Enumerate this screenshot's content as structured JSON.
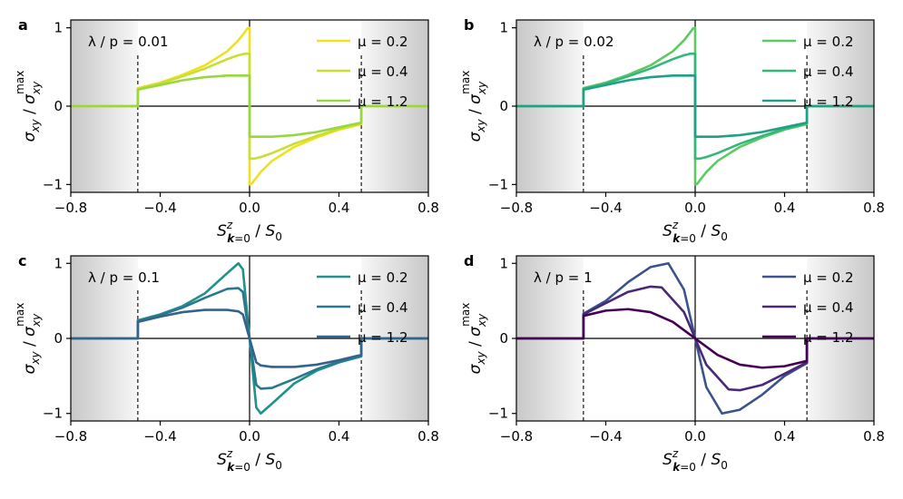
{
  "figure": {
    "xlabel": "S^z_{k=0} / S_0",
    "ylabel": "σ_xy / σ_xy^max"
  },
  "chart_data": [
    {
      "type": "line",
      "panel": "a",
      "note": "λ / p = 0.01",
      "xlim": [
        -0.8,
        0.8
      ],
      "ylim": [
        -1.1,
        1.1
      ],
      "xticks": [
        "−0.8",
        "−0.4",
        "0.0",
        "0.4",
        "0.8"
      ],
      "yticks": [
        "−1",
        "0",
        "1"
      ],
      "shaded_regions": [
        [
          -0.8,
          -0.5
        ],
        [
          0.5,
          0.8
        ]
      ],
      "dashed_lines": [
        -0.5,
        0.5
      ],
      "legend_position": "upper right",
      "series": [
        {
          "name": "μ = 0.2",
          "color": "#f0e11e",
          "x": [
            -0.8,
            -0.5,
            -0.5,
            -0.4,
            -0.3,
            -0.2,
            -0.1,
            -0.05,
            -0.02,
            -0.01,
            0.0,
            0.0,
            0.01,
            0.02,
            0.05,
            0.1,
            0.2,
            0.3,
            0.4,
            0.5,
            0.5,
            0.8
          ],
          "y": [
            0,
            0,
            0.23,
            0.3,
            0.4,
            0.52,
            0.7,
            0.84,
            0.95,
            0.99,
            1.0,
            -1.0,
            -0.99,
            -0.95,
            -0.84,
            -0.7,
            -0.52,
            -0.4,
            -0.3,
            -0.23,
            0,
            0
          ]
        },
        {
          "name": "μ = 0.4",
          "color": "#c8df2f",
          "x": [
            -0.8,
            -0.5,
            -0.5,
            -0.4,
            -0.3,
            -0.2,
            -0.1,
            -0.05,
            -0.02,
            0.0,
            0.0,
            0.02,
            0.05,
            0.1,
            0.2,
            0.3,
            0.4,
            0.5,
            0.5,
            0.8
          ],
          "y": [
            0,
            0,
            0.22,
            0.29,
            0.38,
            0.48,
            0.6,
            0.65,
            0.67,
            0.67,
            -0.67,
            -0.67,
            -0.65,
            -0.6,
            -0.48,
            -0.38,
            -0.29,
            -0.22,
            0,
            0
          ]
        },
        {
          "name": "μ = 1.2",
          "color": "#98d83e",
          "x": [
            -0.8,
            -0.5,
            -0.5,
            -0.4,
            -0.3,
            -0.2,
            -0.1,
            -0.05,
            -0.02,
            0.0,
            0.0,
            0.02,
            0.05,
            0.1,
            0.2,
            0.3,
            0.4,
            0.5,
            0.5,
            0.8
          ],
          "y": [
            0,
            0,
            0.21,
            0.27,
            0.33,
            0.37,
            0.39,
            0.39,
            0.39,
            0.39,
            -0.39,
            -0.39,
            -0.39,
            -0.39,
            -0.37,
            -0.33,
            -0.27,
            -0.21,
            0,
            0
          ]
        }
      ]
    },
    {
      "type": "line",
      "panel": "b",
      "note": "λ / p = 0.02",
      "xlim": [
        -0.8,
        0.8
      ],
      "ylim": [
        -1.1,
        1.1
      ],
      "xticks": [
        "−0.8",
        "−0.4",
        "0.0",
        "0.4",
        "0.8"
      ],
      "yticks": [
        "−1",
        "0",
        "1"
      ],
      "shaded_regions": [
        [
          -0.8,
          -0.5
        ],
        [
          0.5,
          0.8
        ]
      ],
      "dashed_lines": [
        -0.5,
        0.5
      ],
      "legend_position": "upper right",
      "series": [
        {
          "name": "μ = 0.2",
          "color": "#5ec962",
          "x": [
            -0.8,
            -0.5,
            -0.5,
            -0.4,
            -0.3,
            -0.2,
            -0.1,
            -0.05,
            -0.02,
            -0.01,
            0.0,
            0.0,
            0.01,
            0.02,
            0.05,
            0.1,
            0.2,
            0.3,
            0.4,
            0.5,
            0.5,
            0.8
          ],
          "y": [
            0,
            0,
            0.23,
            0.3,
            0.4,
            0.52,
            0.7,
            0.84,
            0.95,
            0.99,
            1.0,
            -1.0,
            -0.99,
            -0.95,
            -0.84,
            -0.7,
            -0.52,
            -0.4,
            -0.3,
            -0.23,
            0,
            0
          ]
        },
        {
          "name": "μ = 0.4",
          "color": "#35b779",
          "x": [
            -0.8,
            -0.5,
            -0.5,
            -0.4,
            -0.3,
            -0.2,
            -0.1,
            -0.05,
            -0.02,
            0.0,
            0.0,
            0.02,
            0.05,
            0.1,
            0.2,
            0.3,
            0.4,
            0.5,
            0.5,
            0.8
          ],
          "y": [
            0,
            0,
            0.22,
            0.29,
            0.38,
            0.48,
            0.6,
            0.65,
            0.67,
            0.67,
            -0.67,
            -0.67,
            -0.65,
            -0.6,
            -0.48,
            -0.38,
            -0.29,
            -0.22,
            0,
            0
          ]
        },
        {
          "name": "μ = 1.2",
          "color": "#1fa187",
          "x": [
            -0.8,
            -0.5,
            -0.5,
            -0.4,
            -0.3,
            -0.2,
            -0.1,
            -0.05,
            -0.02,
            0.0,
            0.0,
            0.02,
            0.05,
            0.1,
            0.2,
            0.3,
            0.4,
            0.5,
            0.5,
            0.8
          ],
          "y": [
            0,
            0,
            0.21,
            0.27,
            0.33,
            0.37,
            0.39,
            0.39,
            0.39,
            0.39,
            -0.39,
            -0.39,
            -0.39,
            -0.39,
            -0.37,
            -0.33,
            -0.27,
            -0.21,
            0,
            0
          ]
        }
      ]
    },
    {
      "type": "line",
      "panel": "c",
      "note": "λ / p = 0.1",
      "xlim": [
        -0.8,
        0.8
      ],
      "ylim": [
        -1.1,
        1.1
      ],
      "xticks": [
        "−0.8",
        "−0.4",
        "0.0",
        "0.4",
        "0.8"
      ],
      "yticks": [
        "−1",
        "0",
        "1"
      ],
      "shaded_regions": [
        [
          -0.8,
          -0.5
        ],
        [
          0.5,
          0.8
        ]
      ],
      "dashed_lines": [
        -0.5,
        0.5
      ],
      "legend_position": "upper right",
      "series": [
        {
          "name": "μ = 0.2",
          "color": "#21918c",
          "x": [
            -0.8,
            -0.5,
            -0.5,
            -0.4,
            -0.3,
            -0.2,
            -0.1,
            -0.05,
            -0.03,
            0.0,
            0.03,
            0.05,
            0.1,
            0.2,
            0.3,
            0.4,
            0.5,
            0.5,
            0.8
          ],
          "y": [
            0,
            0,
            0.24,
            0.32,
            0.43,
            0.6,
            0.87,
            1.0,
            0.92,
            0.0,
            -0.92,
            -1.0,
            -0.87,
            -0.6,
            -0.43,
            -0.32,
            -0.24,
            0,
            0
          ]
        },
        {
          "name": "μ = 0.4",
          "color": "#2a788e",
          "x": [
            -0.8,
            -0.5,
            -0.5,
            -0.4,
            -0.3,
            -0.2,
            -0.1,
            -0.05,
            -0.03,
            0.0,
            0.03,
            0.05,
            0.1,
            0.2,
            0.3,
            0.4,
            0.5,
            0.5,
            0.8
          ],
          "y": [
            0,
            0,
            0.23,
            0.31,
            0.41,
            0.54,
            0.66,
            0.67,
            0.62,
            0.0,
            -0.62,
            -0.67,
            -0.66,
            -0.54,
            -0.41,
            -0.31,
            -0.23,
            0,
            0
          ]
        },
        {
          "name": "μ = 1.2",
          "color": "#33638d",
          "x": [
            -0.8,
            -0.5,
            -0.5,
            -0.4,
            -0.3,
            -0.2,
            -0.1,
            -0.05,
            -0.03,
            0.0,
            0.03,
            0.05,
            0.1,
            0.2,
            0.3,
            0.4,
            0.5,
            0.5,
            0.8
          ],
          "y": [
            0,
            0,
            0.22,
            0.29,
            0.35,
            0.38,
            0.38,
            0.36,
            0.32,
            0.0,
            -0.32,
            -0.36,
            -0.38,
            -0.38,
            -0.35,
            -0.29,
            -0.22,
            0,
            0
          ]
        }
      ]
    },
    {
      "type": "line",
      "panel": "d",
      "note": "λ / p = 1",
      "xlim": [
        -0.8,
        0.8
      ],
      "ylim": [
        -1.1,
        1.1
      ],
      "xticks": [
        "−0.8",
        "−0.4",
        "0.0",
        "0.4",
        "0.8"
      ],
      "yticks": [
        "−1",
        "0",
        "1"
      ],
      "shaded_regions": [
        [
          -0.8,
          -0.5
        ],
        [
          0.5,
          0.8
        ]
      ],
      "dashed_lines": [
        -0.5,
        0.5
      ],
      "legend_position": "upper right",
      "series": [
        {
          "name": "μ = 0.2",
          "color": "#3b528b",
          "x": [
            -0.8,
            -0.5,
            -0.5,
            -0.4,
            -0.3,
            -0.2,
            -0.12,
            -0.05,
            0.0,
            0.05,
            0.12,
            0.2,
            0.3,
            0.4,
            0.5,
            0.5,
            0.8
          ],
          "y": [
            0,
            0,
            0.33,
            0.5,
            0.75,
            0.95,
            1.0,
            0.65,
            0.0,
            -0.65,
            -1.0,
            -0.95,
            -0.75,
            -0.5,
            -0.33,
            0,
            0
          ]
        },
        {
          "name": "μ = 0.4",
          "color": "#482878",
          "x": [
            -0.8,
            -0.5,
            -0.5,
            -0.4,
            -0.3,
            -0.2,
            -0.15,
            -0.05,
            0.0,
            0.05,
            0.15,
            0.2,
            0.3,
            0.4,
            0.5,
            0.5,
            0.8
          ],
          "y": [
            0,
            0,
            0.32,
            0.47,
            0.62,
            0.69,
            0.68,
            0.35,
            0.0,
            -0.35,
            -0.68,
            -0.69,
            -0.62,
            -0.47,
            -0.32,
            0,
            0
          ]
        },
        {
          "name": "μ = 1.2",
          "color": "#440154",
          "x": [
            -0.8,
            -0.5,
            -0.5,
            -0.4,
            -0.3,
            -0.2,
            -0.1,
            0.0,
            0.1,
            0.2,
            0.3,
            0.4,
            0.5,
            0.5,
            0.8
          ],
          "y": [
            0,
            0,
            0.3,
            0.37,
            0.39,
            0.35,
            0.22,
            0.0,
            -0.22,
            -0.35,
            -0.39,
            -0.37,
            -0.3,
            0,
            0
          ]
        }
      ]
    }
  ]
}
